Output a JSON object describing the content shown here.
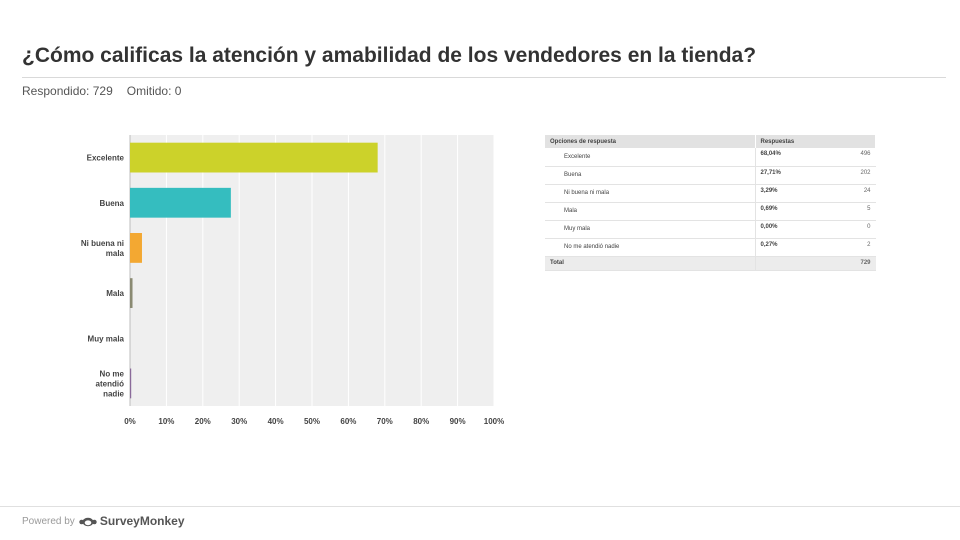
{
  "page": {
    "title": "¿Cómo calificas la atención y amabilidad de los vendedores en la tienda?",
    "answered_label": "Respondido: 729",
    "skipped_label": "Omitido: 0"
  },
  "chart_data": {
    "type": "bar",
    "orientation": "horizontal",
    "title": "",
    "xlabel": "",
    "ylabel": "",
    "categories": [
      "Excelente",
      "Buena",
      "Ni buena ni mala",
      "Mala",
      "Muy mala",
      "No me atendió nadie"
    ],
    "values": [
      68.04,
      27.71,
      3.29,
      0.69,
      0.0,
      0.27
    ],
    "colors": [
      "#ccd22a",
      "#35bdbf",
      "#f3a832",
      "#8a8a72",
      "#888888",
      "#8a6a9a"
    ],
    "xlim": [
      0,
      100
    ],
    "xticks": [
      "0%",
      "10%",
      "20%",
      "30%",
      "40%",
      "50%",
      "60%",
      "70%",
      "80%",
      "90%",
      "100%"
    ],
    "grid": true,
    "legend": "none"
  },
  "table": {
    "headers": [
      "Opciones de respuesta",
      "Respuestas"
    ],
    "rows": [
      {
        "label": "Excelente",
        "pct": "68,04%",
        "count": "496"
      },
      {
        "label": "Buena",
        "pct": "27,71%",
        "count": "202"
      },
      {
        "label": "Ni buena ni mala",
        "pct": "3,29%",
        "count": "24"
      },
      {
        "label": "Mala",
        "pct": "0,69%",
        "count": "5"
      },
      {
        "label": "Muy mala",
        "pct": "0,00%",
        "count": "0"
      },
      {
        "label": "No me atendió nadie",
        "pct": "0,27%",
        "count": "2"
      }
    ],
    "total_label": "Total",
    "total_count": "729"
  },
  "footer": {
    "powered_by": "Powered by",
    "brand": "SurveyMonkey",
    "logo_icon": "surveymonkey-logo-icon"
  }
}
